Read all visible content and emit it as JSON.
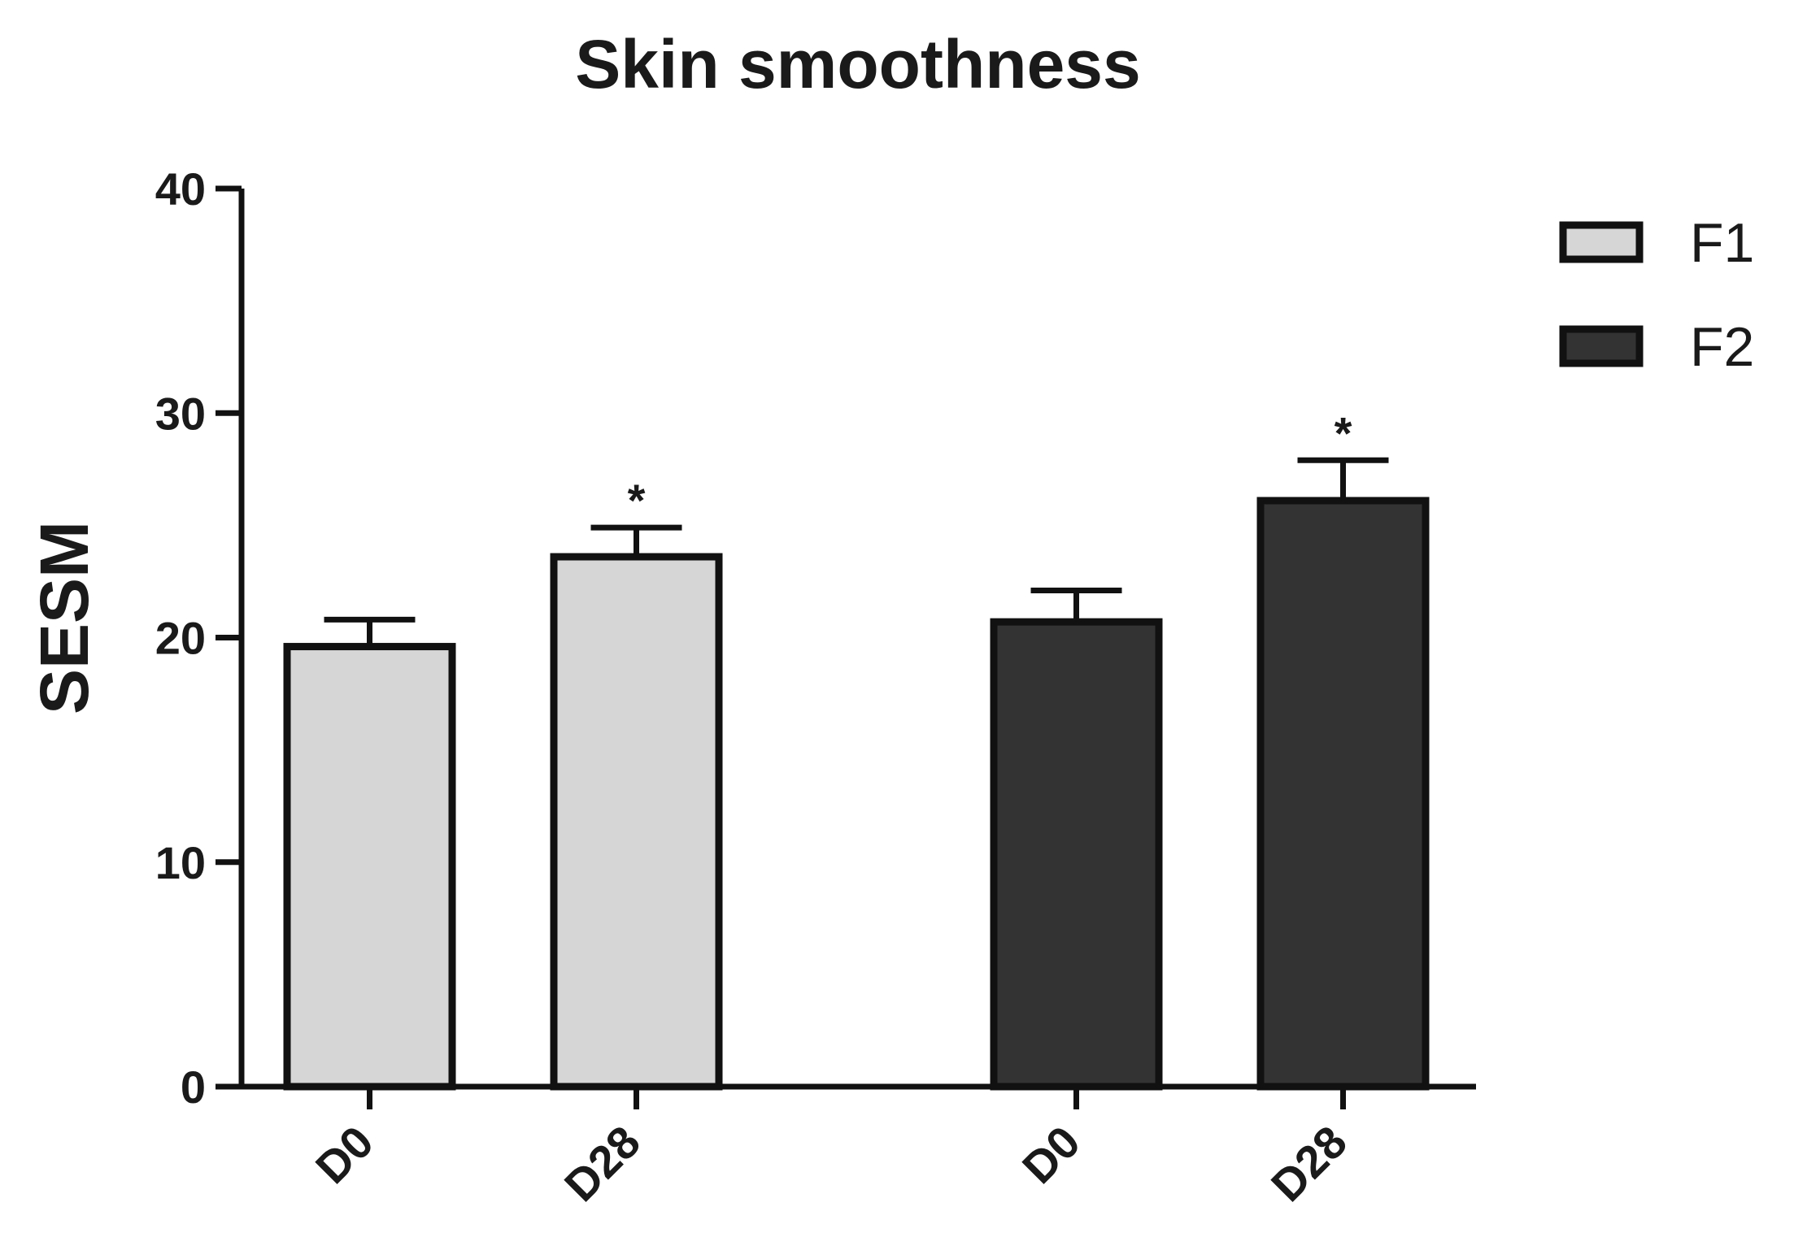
{
  "chart_data": {
    "type": "bar",
    "title": "Skin smoothness",
    "ylabel": "SESM",
    "xlabel": "",
    "ylim": [
      0,
      40
    ],
    "yticks": [
      0,
      10,
      20,
      30,
      40
    ],
    "legend_position": "top-right",
    "categories": [
      "D0",
      "D28"
    ],
    "series": [
      {
        "name": "F1",
        "color": "#d6d6d6",
        "values": [
          19.6,
          23.6
        ],
        "errors": [
          1.2,
          1.3
        ],
        "significance": [
          "",
          "*"
        ]
      },
      {
        "name": "F2",
        "color": "#333333",
        "values": [
          20.7,
          26.1
        ],
        "errors": [
          1.4,
          1.8
        ],
        "significance": [
          "",
          "*"
        ]
      }
    ],
    "grid": false
  }
}
